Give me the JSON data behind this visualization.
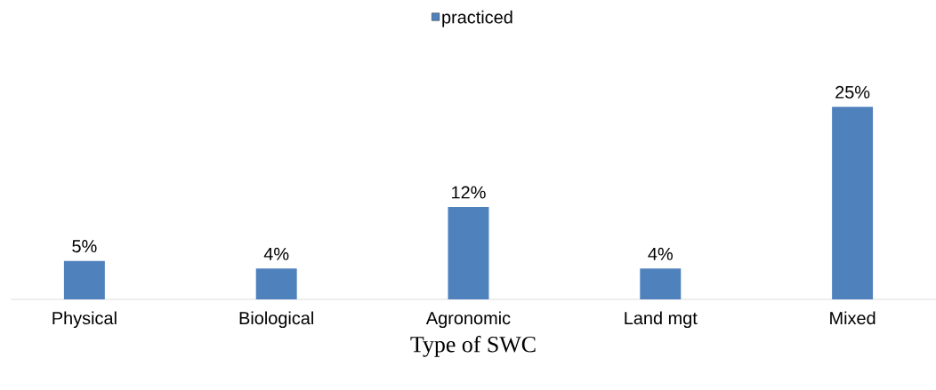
{
  "chart_data": {
    "type": "bar",
    "xlabel": "Type of SWC",
    "categories": [
      "Physical",
      "Biological",
      "Agronomic",
      "Land mgt",
      "Mixed"
    ],
    "series": [
      {
        "name": "practiced",
        "color": "#4f81bd",
        "values": [
          5,
          4,
          12,
          4,
          25
        ],
        "value_labels": [
          "5%",
          "4%",
          "12%",
          "4%",
          "25%"
        ]
      }
    ],
    "legend": "top"
  }
}
